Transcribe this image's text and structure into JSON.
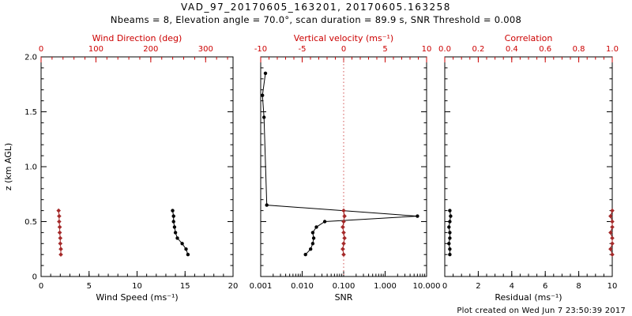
{
  "header": {
    "title": "VAD_97_20170605_163201, 20170605.163258",
    "subtitle": "Nbeams = 8, Elevation angle = 70.0°, scan duration = 89.9 s, SNR Threshold = 0.008"
  },
  "footer": {
    "created": "Plot created on Wed Jun  7 23:50:39 2017"
  },
  "colors": {
    "axis_red": "#cc0000",
    "marker_red": "#a52a2a",
    "black": "#000000",
    "vline_red": "#d05050"
  },
  "y_axis": {
    "label": "z (km AGL)",
    "min": 0,
    "max": 2,
    "ticks": [
      0,
      0.5,
      1.0,
      1.5,
      2.0
    ],
    "tick_labels": [
      "0",
      "0.5",
      "1.0",
      "1.5",
      "2.0"
    ],
    "minor_step": 0.1
  },
  "chart_data": [
    {
      "type": "line",
      "name": "wind",
      "bottom_axis": {
        "label": "Wind Speed (ms⁻¹)",
        "scale": "linear",
        "min": 0,
        "max": 20,
        "ticks": [
          0,
          5,
          10,
          15,
          20
        ],
        "tick_labels": [
          "0",
          "5",
          "10",
          "15",
          "20"
        ],
        "minor_divs": 5
      },
      "top_axis": {
        "label": "Wind Direction (deg)",
        "scale": "linear",
        "min": 0,
        "max": 350,
        "ticks": [
          0,
          100,
          200,
          300
        ],
        "tick_labels": [
          "0",
          "100",
          "200",
          "300"
        ],
        "minor_divs": 5
      },
      "series": [
        {
          "name": "wind-speed",
          "axis": "bottom",
          "color": "black",
          "marker": "circle",
          "z": [
            0.2,
            0.25,
            0.3,
            0.35,
            0.4,
            0.45,
            0.5,
            0.55,
            0.6
          ],
          "values": [
            15.3,
            15.1,
            14.7,
            14.2,
            14.0,
            13.9,
            13.8,
            13.8,
            13.7
          ]
        },
        {
          "name": "wind-direction",
          "axis": "top",
          "color": "red",
          "marker": "diamond",
          "z": [
            0.2,
            0.25,
            0.3,
            0.35,
            0.4,
            0.45,
            0.5,
            0.55,
            0.6
          ],
          "values": [
            36,
            36,
            35,
            35,
            34,
            34,
            33,
            33,
            32
          ]
        }
      ]
    },
    {
      "type": "line",
      "name": "snr",
      "bottom_axis": {
        "label": "SNR",
        "scale": "log",
        "min": 0.001,
        "max": 10,
        "ticks": [
          0.001,
          0.01,
          0.1,
          1,
          10
        ],
        "tick_labels": [
          "0.001",
          "0.010",
          "0.100",
          "1.000",
          "10.000"
        ]
      },
      "top_axis": {
        "label": "Vertical velocity (ms⁻¹)",
        "scale": "linear",
        "min": -10,
        "max": 10,
        "ticks": [
          -10,
          -5,
          0,
          5,
          10
        ],
        "tick_labels": [
          "-10",
          "-5",
          "0",
          "5",
          "10"
        ],
        "minor_divs": 5
      },
      "vline": {
        "axis": "top",
        "value": 0
      },
      "series": [
        {
          "name": "snr-profile",
          "axis": "bottom",
          "color": "black",
          "marker": "circle",
          "z": [
            1.85,
            1.65,
            1.45,
            0.65,
            0.55,
            0.5,
            0.45,
            0.4,
            0.35,
            0.3,
            0.25,
            0.2
          ],
          "values": [
            0.0013,
            0.0011,
            0.0012,
            0.0014,
            6.0,
            0.035,
            0.022,
            0.018,
            0.019,
            0.018,
            0.016,
            0.012
          ]
        },
        {
          "name": "vertical-velocity",
          "axis": "top",
          "color": "red",
          "marker": "diamond",
          "z": [
            0.2,
            0.25,
            0.3,
            0.35,
            0.4,
            0.45,
            0.5,
            0.55,
            0.6
          ],
          "values": [
            0.0,
            -0.1,
            0.0,
            0.1,
            0.0,
            -0.1,
            0.0,
            0.1,
            0.0
          ]
        }
      ]
    },
    {
      "type": "line",
      "name": "residual",
      "bottom_axis": {
        "label": "Residual (ms⁻¹)",
        "scale": "linear",
        "min": 0,
        "max": 10,
        "ticks": [
          0,
          2,
          4,
          6,
          8,
          10
        ],
        "tick_labels": [
          "0",
          "2",
          "4",
          "6",
          "8",
          "10"
        ],
        "minor_divs": 4
      },
      "top_axis": {
        "label": "Correlation",
        "scale": "linear",
        "min": 0,
        "max": 1,
        "ticks": [
          0,
          0.2,
          0.4,
          0.6,
          0.8,
          1.0
        ],
        "tick_labels": [
          "0.0",
          "0.2",
          "0.4",
          "0.6",
          "0.8",
          "1.0"
        ],
        "minor_divs": 4
      },
      "series": [
        {
          "name": "residual-profile",
          "axis": "bottom",
          "color": "black",
          "marker": "circle",
          "z": [
            0.2,
            0.25,
            0.3,
            0.35,
            0.4,
            0.45,
            0.5,
            0.55,
            0.6
          ],
          "values": [
            0.3,
            0.3,
            0.25,
            0.3,
            0.3,
            0.25,
            0.3,
            0.35,
            0.3
          ]
        },
        {
          "name": "correlation-profile",
          "axis": "top",
          "color": "red",
          "marker": "diamond",
          "z": [
            0.2,
            0.25,
            0.3,
            0.35,
            0.4,
            0.45,
            0.5,
            0.55,
            0.6
          ],
          "values": [
            1.0,
            0.99,
            1.0,
            1.0,
            0.99,
            1.0,
            1.0,
            0.99,
            1.0
          ]
        }
      ]
    }
  ]
}
